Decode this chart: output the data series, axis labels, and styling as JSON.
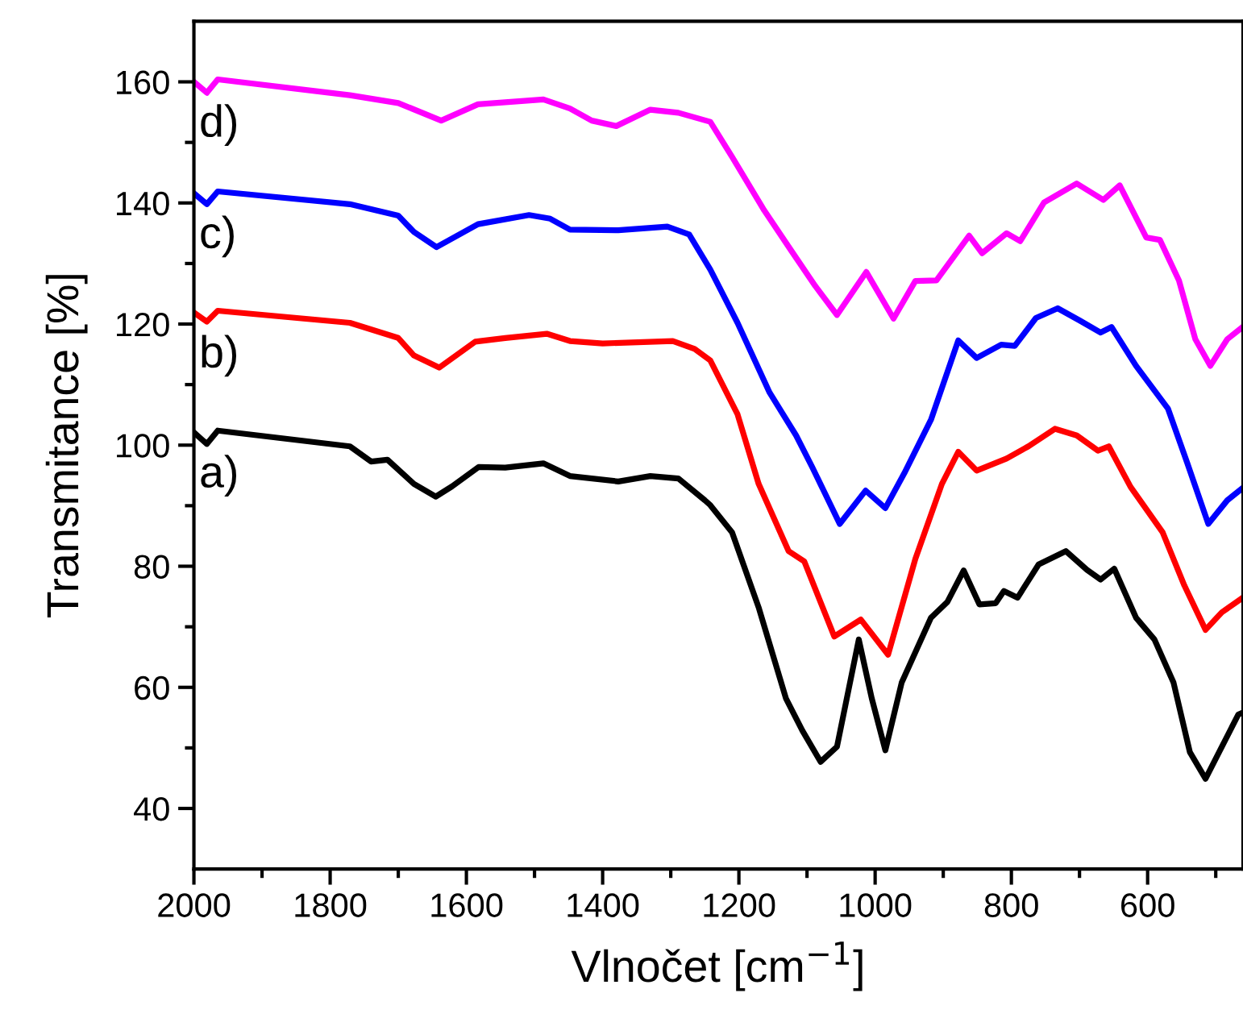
{
  "chart_data": {
    "type": "line",
    "xlabel": "Vlnočet [cm$^{−1}$]",
    "ylabel": "Transmitance [%]",
    "xlim": [
      2000,
      460
    ],
    "ylim": [
      30,
      170
    ],
    "xticks": [
      2000,
      {
        "value": 1900,
        "label": null
      },
      1800,
      {
        "value": 1700,
        "label": null
      },
      1600,
      {
        "value": 1500,
        "label": null
      },
      1400,
      {
        "value": 1300,
        "label": null
      },
      1200,
      {
        "value": 1100,
        "label": null
      },
      1000,
      {
        "value": 900,
        "label": null
      },
      800,
      {
        "value": 700,
        "label": null
      },
      600,
      {
        "value": 500,
        "label": null
      }
    ],
    "yticks": [
      40,
      {
        "value": 50,
        "label": null
      },
      60,
      {
        "value": 70,
        "label": null
      },
      80,
      {
        "value": 90,
        "label": null
      },
      100,
      {
        "value": 110,
        "label": null
      },
      120,
      {
        "value": 130,
        "label": null
      },
      140,
      {
        "value": 150,
        "label": null
      },
      160
    ],
    "grid": false,
    "marker": "none",
    "line_style": "solid",
    "series": [
      {
        "color": "#000000",
        "x": [
          2000,
          1981,
          1965,
          1771,
          1740,
          1716,
          1677,
          1645,
          1621,
          1582,
          1543,
          1487,
          1448,
          1377,
          1330,
          1289,
          1250,
          1242,
          1210,
          1171,
          1131,
          1107,
          1080,
          1056,
          1024,
          1005,
          985,
          961,
          918,
          894,
          870,
          847,
          823,
          811,
          791,
          760,
          720,
          689,
          669,
          649,
          617,
          590,
          562,
          538,
          515,
          491,
          467,
          461
        ],
        "values": [
          102.1,
          100.2,
          102.4,
          99.8,
          97.3,
          97.6,
          93.6,
          91.5,
          93.2,
          96.4,
          96.3,
          97.0,
          94.9,
          94.0,
          94.9,
          94.5,
          90.9,
          90.1,
          85.6,
          73.2,
          58.2,
          52.9,
          47.7,
          50.2,
          67.9,
          58.2,
          49.6,
          60.8,
          71.5,
          74.1,
          79.3,
          73.7,
          73.9,
          75.9,
          74.8,
          80.3,
          82.5,
          79.4,
          77.8,
          79.6,
          71.5,
          67.9,
          60.8,
          49.3,
          44.9,
          50.2,
          55.5,
          55.8
        ]
      },
      {
        "color": "#ff0000",
        "x": [
          2000,
          1981,
          1965,
          1771,
          1700,
          1677,
          1640,
          1587,
          1543,
          1482,
          1448,
          1400,
          1297,
          1265,
          1242,
          1202,
          1171,
          1127,
          1104,
          1060,
          1021,
          981,
          941,
          902,
          878,
          851,
          807,
          775,
          736,
          704,
          673,
          657,
          625,
          578,
          546,
          515,
          491,
          463
        ],
        "values": [
          121.9,
          120.4,
          122.2,
          120.2,
          117.7,
          114.8,
          112.8,
          117.1,
          117.7,
          118.4,
          117.2,
          116.8,
          117.2,
          115.9,
          114.0,
          105.1,
          93.6,
          82.5,
          80.8,
          68.4,
          71.2,
          65.4,
          81.2,
          93.6,
          98.9,
          95.8,
          97.8,
          99.8,
          102.7,
          101.6,
          99.1,
          99.8,
          93.1,
          85.6,
          76.8,
          69.5,
          72.4,
          74.6
        ]
      },
      {
        "color": "#0000ff",
        "x": [
          2000,
          1981,
          1965,
          1771,
          1700,
          1677,
          1644,
          1583,
          1508,
          1477,
          1448,
          1377,
          1305,
          1273,
          1242,
          1202,
          1155,
          1116,
          1092,
          1052,
          1014,
          985,
          957,
          918,
          878,
          851,
          815,
          795,
          764,
          732,
          700,
          669,
          653,
          617,
          570,
          542,
          511,
          483,
          463
        ],
        "values": [
          141.6,
          139.8,
          141.9,
          139.8,
          137.9,
          135.2,
          132.7,
          136.5,
          138.0,
          137.4,
          135.6,
          135.5,
          136.1,
          134.8,
          129.0,
          120.2,
          108.7,
          101.6,
          96.3,
          87.0,
          92.5,
          89.6,
          95.4,
          104.2,
          117.3,
          114.4,
          116.6,
          116.4,
          121.0,
          122.6,
          120.6,
          118.6,
          119.5,
          113.1,
          106.0,
          97.1,
          87.0,
          90.9,
          92.7
        ]
      },
      {
        "color": "#ff00ff",
        "x": [
          2000,
          1981,
          1965,
          1771,
          1700,
          1637,
          1583,
          1487,
          1448,
          1416,
          1380,
          1330,
          1289,
          1242,
          1210,
          1163,
          1123,
          1088,
          1056,
          1013,
          973,
          941,
          910,
          862,
          843,
          807,
          787,
          752,
          704,
          665,
          641,
          602,
          582,
          554,
          530,
          508,
          483,
          463
        ],
        "values": [
          160.0,
          158.2,
          160.4,
          157.8,
          156.5,
          153.6,
          156.3,
          157.1,
          155.6,
          153.6,
          152.7,
          155.4,
          154.9,
          153.4,
          147.6,
          138.8,
          132.1,
          126.3,
          121.5,
          128.6,
          120.9,
          127.1,
          127.2,
          134.6,
          131.7,
          135.0,
          133.7,
          140.1,
          143.2,
          140.5,
          142.9,
          134.3,
          133.9,
          127.2,
          117.5,
          113.1,
          117.5,
          119.3
        ]
      }
    ],
    "annotations": [
      "a)",
      "b)",
      "c)",
      "d)"
    ]
  }
}
